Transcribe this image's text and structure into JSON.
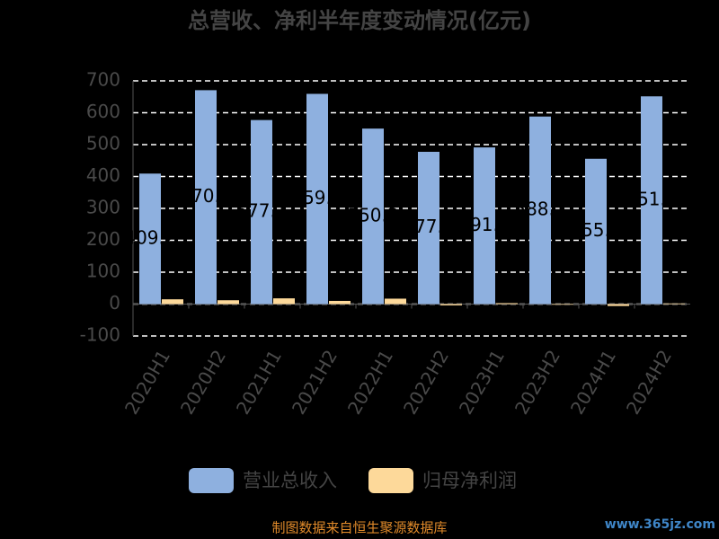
{
  "chart_data": {
    "type": "bar",
    "title": "总营收、净利半年度变动情况(亿元)",
    "categories": [
      "2020H1",
      "2020H2",
      "2021H1",
      "2021H2",
      "2022H1",
      "2022H2",
      "2023H1",
      "2023H2",
      "2024H1",
      "2024H2"
    ],
    "series": [
      {
        "name": "营业总收入",
        "color": "#8eb0df",
        "values": [
          409.2,
          670.7,
          577.1,
          659.2,
          550.3,
          477.5,
          491.3,
          588.1,
          455.6,
          651.4
        ]
      },
      {
        "name": "归母净利润",
        "color": "#fdd99a",
        "values": [
          15,
          12,
          18,
          10,
          17,
          -4,
          3,
          -2,
          -6,
          2
        ]
      }
    ],
    "ylim": [
      -100,
      700
    ],
    "yticks": [
      -100,
      0,
      100,
      200,
      300,
      400,
      500,
      600,
      700
    ],
    "grid": true,
    "source": "制图数据来自恒生聚源数据库",
    "watermark": "www.365jz.com"
  }
}
